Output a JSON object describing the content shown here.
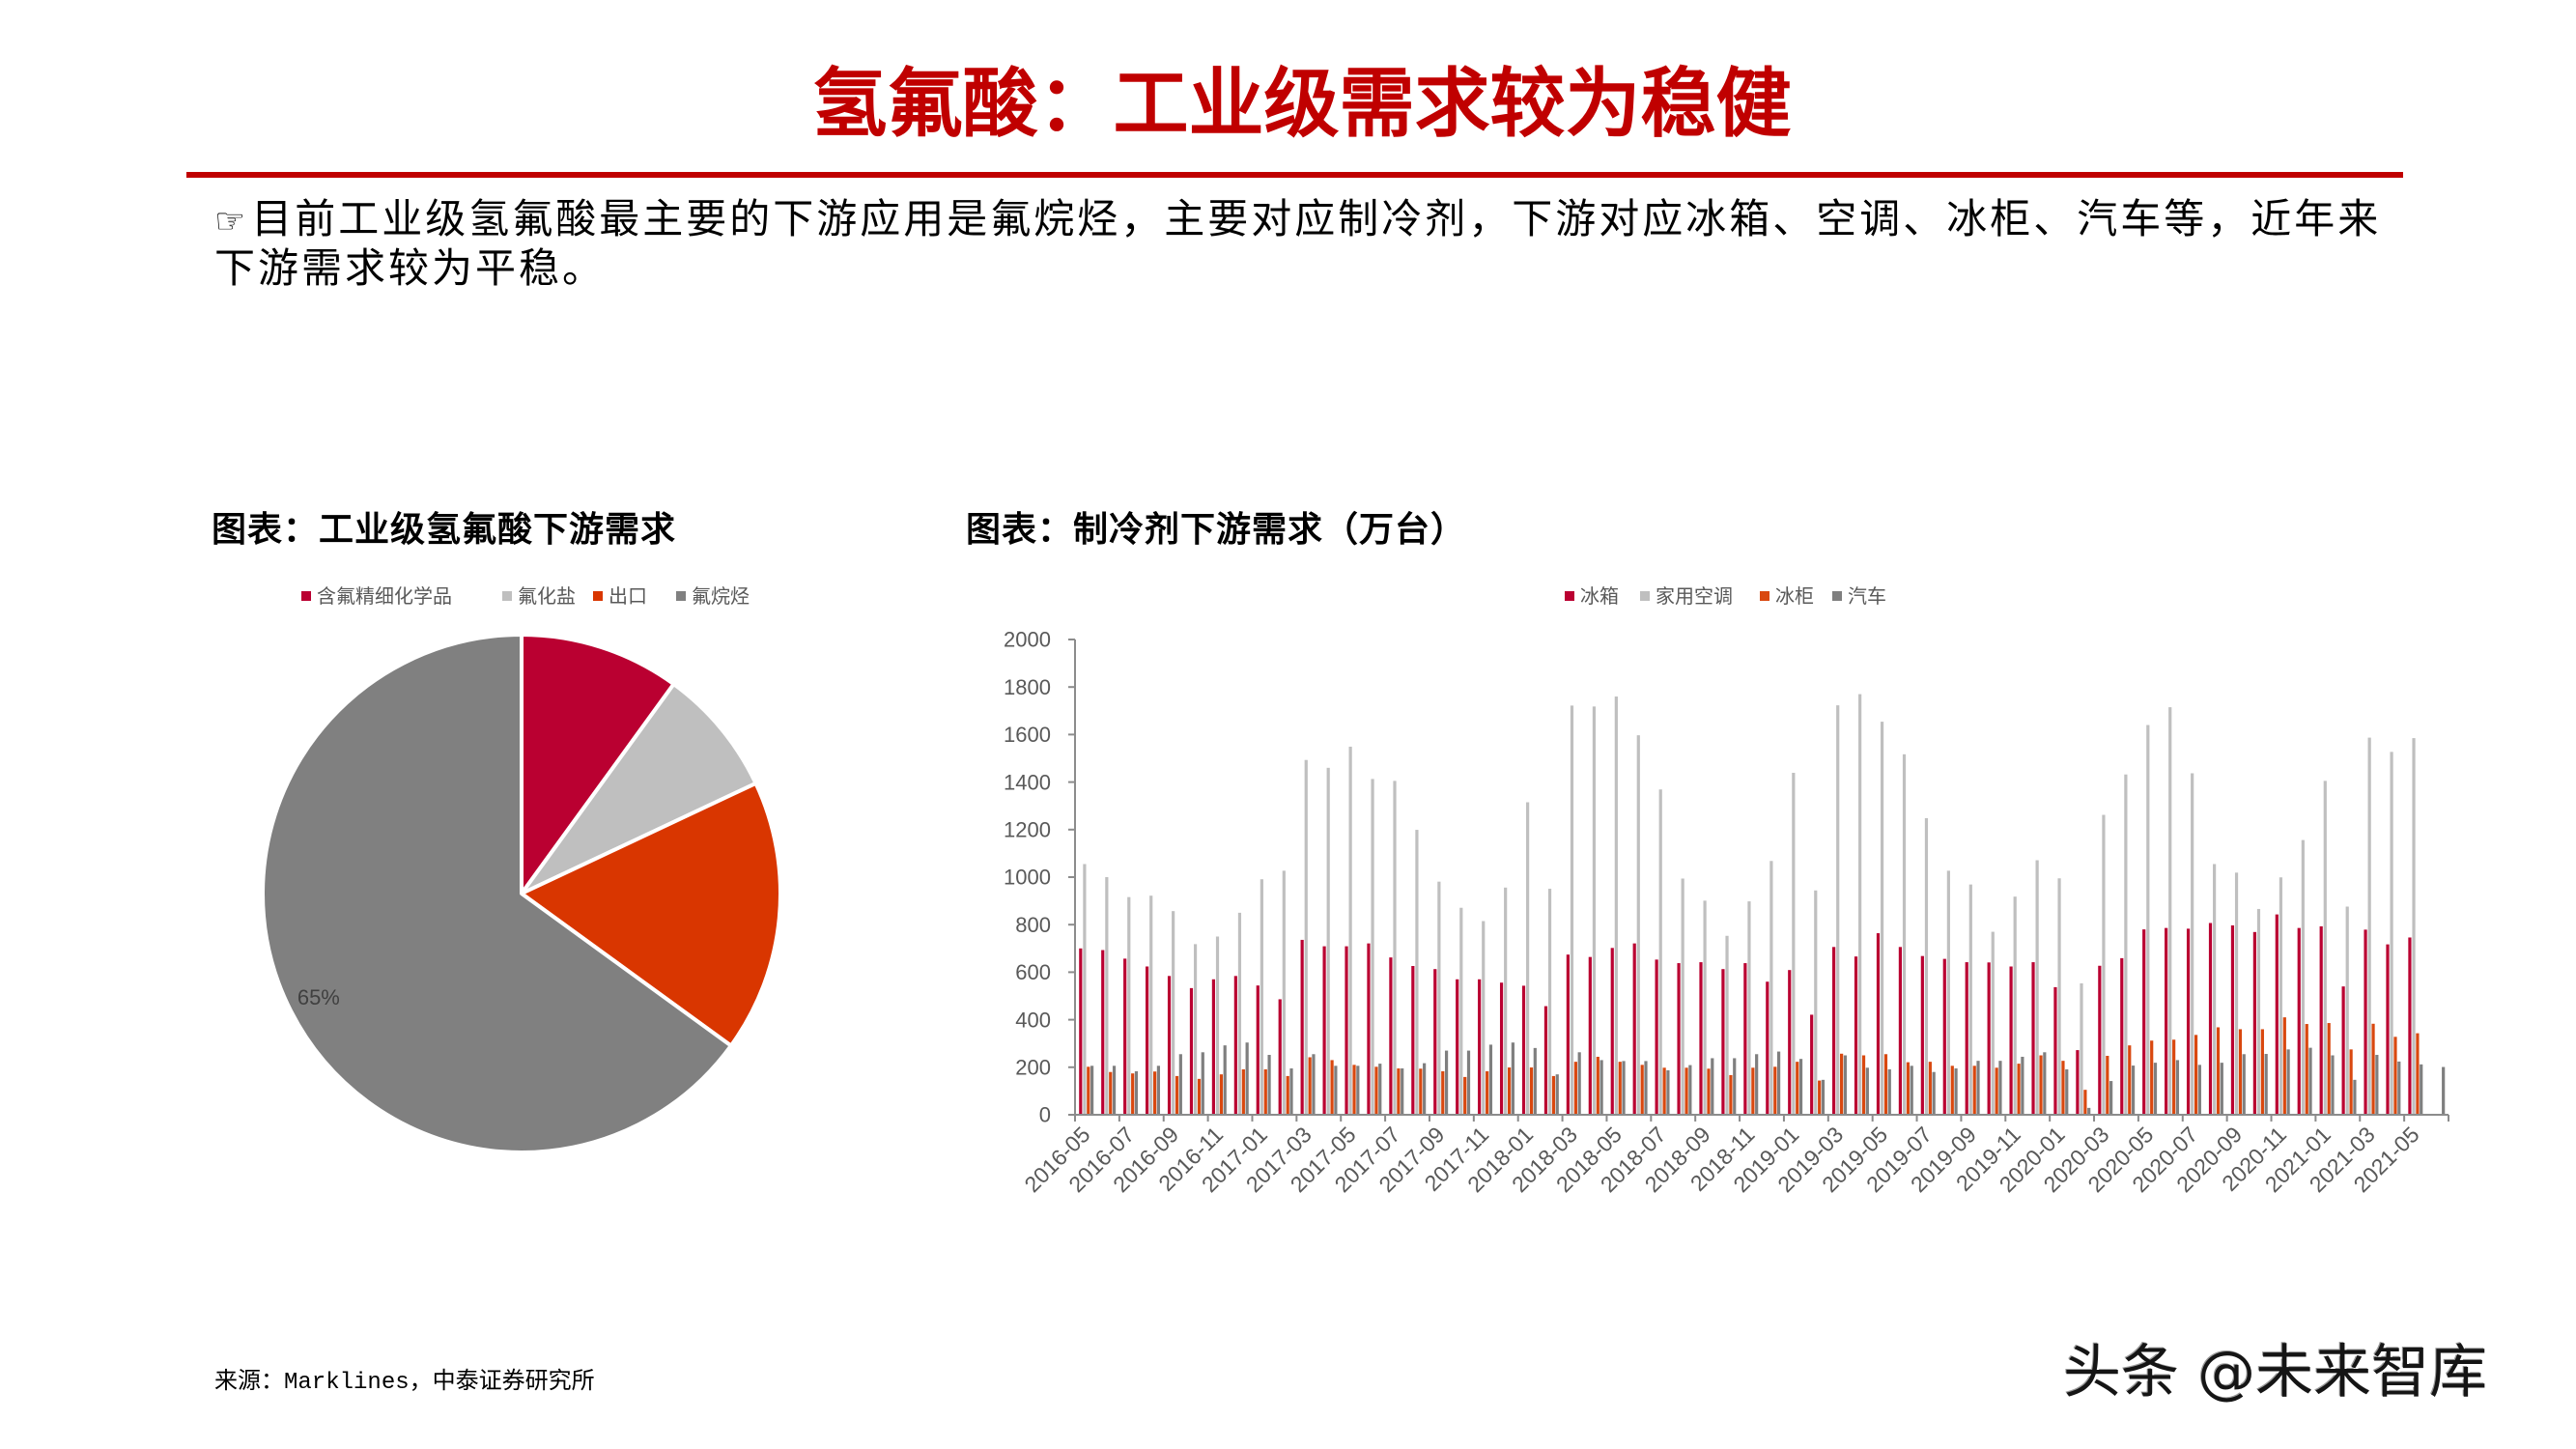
{
  "page": {
    "title": "氢氟酸：工业级需求较为稳健",
    "accent_color": "#C00000"
  },
  "body": {
    "bullet_icon": "☞",
    "lines": [
      "目前工业级氢氟酸最主要的下游应用是氟烷烃，主要对应制冷剂，下游对应冰箱、空调、冰柜、汽车等，近年来",
      "下游需求较为平稳。"
    ]
  },
  "figures": {
    "left_title": "图表：工业级氢氟酸下游需求",
    "right_title": "图表：制冷剂下游需求（万台）"
  },
  "source": "来源：Marklines，中泰证券研究所",
  "watermark": "头条 @未来智库",
  "chart_data": [
    {
      "type": "pie",
      "title": "图表：工业级氢氟酸下游需求",
      "categories": [
        "含氟精细化学品",
        "氟化盐",
        "出口",
        "氟烷烃"
      ],
      "values": [
        10,
        8,
        17,
        65
      ],
      "unit": "%",
      "colors": [
        "#BA0031",
        "#BFBFBF",
        "#D93600",
        "#808080"
      ],
      "data_labels": [
        null,
        null,
        null,
        "65%"
      ],
      "legend_position": "top",
      "start_angle_deg": 0,
      "direction": "clockwise"
    },
    {
      "type": "bar",
      "title": "图表：制冷剂下游需求（万台）",
      "xlabel": "",
      "ylabel": "万台",
      "ylim": [
        0,
        2000
      ],
      "yticks": [
        0,
        200,
        400,
        600,
        800,
        1000,
        1200,
        1400,
        1600,
        1800,
        2000
      ],
      "grid": false,
      "legend_position": "top-right",
      "x_tick_interval": 2,
      "categories": [
        "2016-05",
        "2016-06",
        "2016-07",
        "2016-08",
        "2016-09",
        "2016-10",
        "2016-11",
        "2016-12",
        "2017-01",
        "2017-02",
        "2017-03",
        "2017-04",
        "2017-05",
        "2017-06",
        "2017-07",
        "2017-08",
        "2017-09",
        "2017-10",
        "2017-11",
        "2017-12",
        "2018-01",
        "2018-02",
        "2018-03",
        "2018-04",
        "2018-05",
        "2018-06",
        "2018-07",
        "2018-08",
        "2018-09",
        "2018-10",
        "2018-11",
        "2018-12",
        "2019-01",
        "2019-02",
        "2019-03",
        "2019-04",
        "2019-05",
        "2019-06",
        "2019-07",
        "2019-08",
        "2019-09",
        "2019-10",
        "2019-11",
        "2019-12",
        "2020-01",
        "2020-02",
        "2020-03",
        "2020-04",
        "2020-05",
        "2020-06",
        "2020-07",
        "2020-08",
        "2020-09",
        "2020-10",
        "2020-11",
        "2020-12",
        "2021-01",
        "2021-02",
        "2021-03",
        "2021-04",
        "2021-05",
        "2021-06"
      ],
      "series": [
        {
          "name": "冰箱",
          "color": "#BA0031",
          "values": [
            700,
            693,
            657,
            624,
            584,
            533,
            570,
            584,
            544,
            486,
            736,
            709,
            709,
            721,
            662,
            626,
            613,
            570,
            570,
            556,
            543,
            457,
            674,
            664,
            702,
            721,
            653,
            638,
            642,
            613,
            638,
            560,
            609,
            421,
            706,
            666,
            764,
            706,
            668,
            656,
            642,
            641,
            624,
            642,
            537,
            272,
            627,
            659,
            780,
            786,
            783,
            807,
            797,
            769,
            843,
            786,
            793,
            540,
            779,
            717,
            746,
            null
          ]
        },
        {
          "name": "家用空调",
          "color": "#BFBFBF",
          "values": [
            1055,
            1000,
            916,
            922,
            857,
            718,
            750,
            850,
            991,
            1027,
            1493,
            1460,
            1549,
            1413,
            1405,
            1199,
            981,
            871,
            815,
            956,
            1315,
            951,
            1722,
            1718,
            1760,
            1597,
            1369,
            994,
            901,
            753,
            898,
            1068,
            1439,
            944,
            1723,
            1770,
            1654,
            1517,
            1248,
            1027,
            969,
            770,
            918,
            1071,
            995,
            553,
            1262,
            1432,
            1640,
            1715,
            1437,
            1055,
            1019,
            866,
            999,
            1156,
            1405,
            876,
            1587,
            1527,
            1585,
            null
          ]
        },
        {
          "name": "冰柜",
          "color": "#D9480F",
          "values": [
            202,
            180,
            174,
            182,
            163,
            151,
            170,
            191,
            191,
            163,
            242,
            230,
            210,
            202,
            195,
            194,
            183,
            159,
            183,
            199,
            199,
            163,
            223,
            244,
            223,
            210,
            198,
            198,
            194,
            167,
            198,
            202,
            223,
            144,
            257,
            250,
            255,
            221,
            223,
            206,
            206,
            198,
            215,
            250,
            227,
            105,
            248,
            292,
            312,
            316,
            336,
            368,
            360,
            360,
            410,
            382,
            386,
            275,
            383,
            328,
            343,
            null
          ]
        },
        {
          "name": "汽车",
          "color": "#7F7F7F",
          "values": [
            206,
            206,
            183,
            206,
            255,
            263,
            292,
            304,
            252,
            195,
            255,
            206,
            206,
            215,
            195,
            217,
            270,
            270,
            295,
            304,
            281,
            170,
            263,
            230,
            226,
            226,
            187,
            209,
            238,
            238,
            255,
            266,
            235,
            147,
            250,
            198,
            191,
            206,
            180,
            195,
            227,
            227,
            244,
            263,
            191,
            29,
            142,
            207,
            219,
            230,
            210,
            219,
            255,
            256,
            275,
            282,
            250,
            147,
            252,
            224,
            212,
            201
          ]
        }
      ]
    }
  ]
}
